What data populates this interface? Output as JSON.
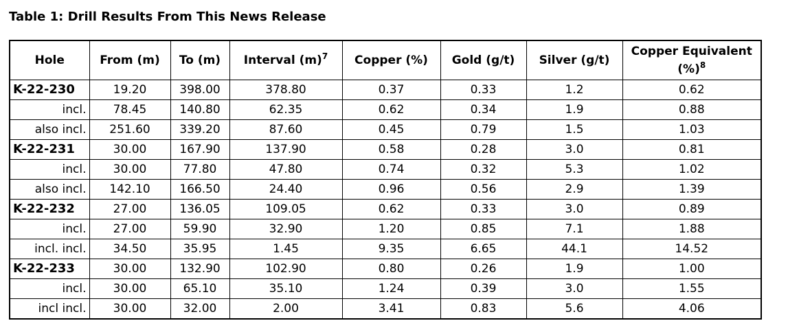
{
  "title": "Table 1: Drill Results From This News Release",
  "table": {
    "header": [
      {
        "text": "Hole"
      },
      {
        "text": "From (m)"
      },
      {
        "text": "To (m)"
      },
      {
        "text": "Interval (m)",
        "sup": "7"
      },
      {
        "text": "Copper (%)"
      },
      {
        "text": "Gold (g/t)"
      },
      {
        "text": "Silver (g/t)"
      },
      {
        "text": "Copper Equivalent (%)",
        "sup": "8"
      }
    ],
    "rows": [
      [
        "K-22-230",
        "19.20",
        "398.00",
        "378.80",
        "0.37",
        "0.33",
        "1.2",
        "0.62"
      ],
      [
        "incl.",
        "78.45",
        "140.80",
        "62.35",
        "0.62",
        "0.34",
        "1.9",
        "0.88"
      ],
      [
        "also incl.",
        "251.60",
        "339.20",
        "87.60",
        "0.45",
        "0.79",
        "1.5",
        "1.03"
      ],
      [
        "K-22-231",
        "30.00",
        "167.90",
        "137.90",
        "0.58",
        "0.28",
        "3.0",
        "0.81"
      ],
      [
        "incl.",
        "30.00",
        "77.80",
        "47.80",
        "0.74",
        "0.32",
        "5.3",
        "1.02"
      ],
      [
        "also incl.",
        "142.10",
        "166.50",
        "24.40",
        "0.96",
        "0.56",
        "2.9",
        "1.39"
      ],
      [
        "K-22-232",
        "27.00",
        "136.05",
        "109.05",
        "0.62",
        "0.33",
        "3.0",
        "0.89"
      ],
      [
        "incl.",
        "27.00",
        "59.90",
        "32.90",
        "1.20",
        "0.85",
        "7.1",
        "1.88"
      ],
      [
        "incl. incl.",
        "34.50",
        "35.95",
        "1.45",
        "9.35",
        "6.65",
        "44.1",
        "14.52"
      ],
      [
        "K-22-233",
        "30.00",
        "132.90",
        "102.90",
        "0.80",
        "0.26",
        "1.9",
        "1.00"
      ],
      [
        "incl.",
        "30.00",
        "65.10",
        "35.10",
        "1.24",
        "0.39",
        "3.0",
        "1.55"
      ],
      [
        "incl incl.",
        "30.00",
        "32.00",
        "2.00",
        "3.41",
        "0.83",
        "5.6",
        "4.06"
      ]
    ]
  }
}
